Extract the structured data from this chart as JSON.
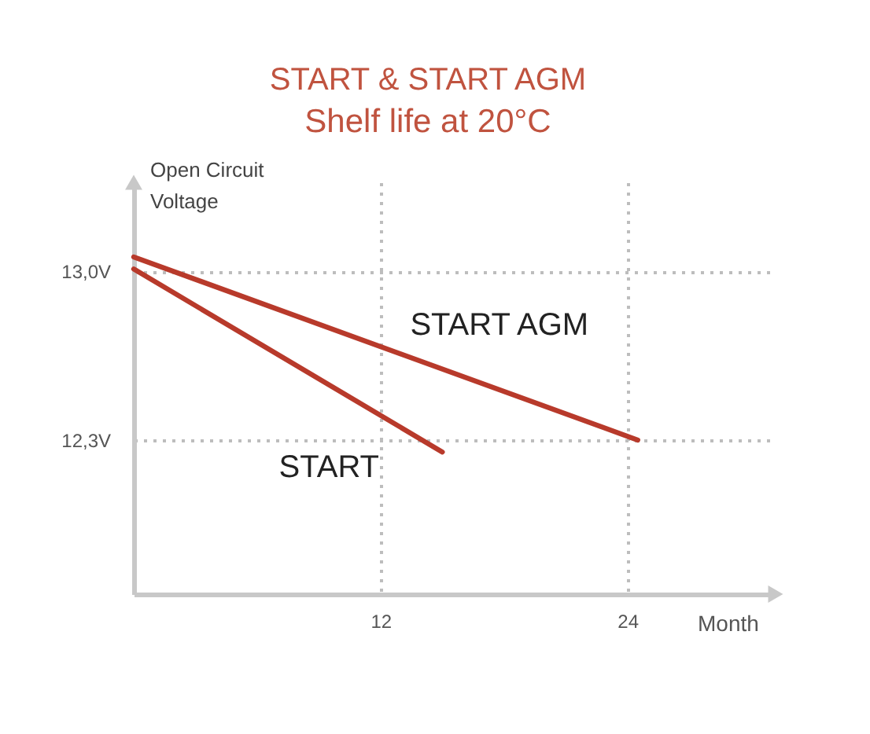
{
  "chart_data": {
    "type": "line",
    "title": "START & START AGM",
    "subtitle": "Shelf life at 20°C",
    "xlabel": "Month",
    "ylabel": "Open Circuit Voltage",
    "series": [
      {
        "name": "START AGM",
        "color": "#b83a2b",
        "x": [
          0,
          24.5
        ],
        "values": [
          13.06,
          12.3
        ]
      },
      {
        "name": "START",
        "color": "#b83a2b",
        "x": [
          0,
          15
        ],
        "values": [
          13.01,
          12.25
        ]
      }
    ],
    "xlim": [
      0,
      31.2
    ],
    "ylim": [
      11.66,
      13.37
    ],
    "xticks": [
      12,
      24
    ],
    "yticks": [
      {
        "value": 13.0,
        "label": "13,0V"
      },
      {
        "value": 12.3,
        "label": "12,3V"
      }
    ],
    "grid": true
  }
}
